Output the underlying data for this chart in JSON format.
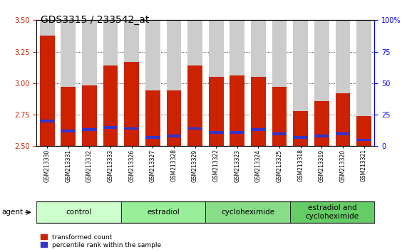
{
  "title": "GDS3315 / 233542_at",
  "samples": [
    "GSM213330",
    "GSM213331",
    "GSM213332",
    "GSM213333",
    "GSM213326",
    "GSM213327",
    "GSM213328",
    "GSM213329",
    "GSM213322",
    "GSM213323",
    "GSM213324",
    "GSM213325",
    "GSM213318",
    "GSM213319",
    "GSM213320",
    "GSM213321"
  ],
  "red_values": [
    3.38,
    2.97,
    2.98,
    3.14,
    3.17,
    2.94,
    2.94,
    3.14,
    3.05,
    3.06,
    3.05,
    2.97,
    2.78,
    2.86,
    2.92,
    2.74
  ],
  "blue_values": [
    2.7,
    2.62,
    2.63,
    2.65,
    2.64,
    2.57,
    2.58,
    2.64,
    2.61,
    2.61,
    2.63,
    2.6,
    2.57,
    2.58,
    2.6,
    2.55
  ],
  "ymin": 2.5,
  "ymax": 3.5,
  "yticks": [
    2.5,
    2.75,
    3.0,
    3.25,
    3.5
  ],
  "y_right_ticks": [
    0,
    25,
    50,
    75,
    100
  ],
  "y_right_labels": [
    "0",
    "25",
    "50",
    "75",
    "100%"
  ],
  "groups": [
    {
      "label": "control",
      "start": 0,
      "end": 4,
      "color": "#ccffcc"
    },
    {
      "label": "estradiol",
      "start": 4,
      "end": 8,
      "color": "#99ee99"
    },
    {
      "label": "cycloheximide",
      "start": 8,
      "end": 12,
      "color": "#88dd88"
    },
    {
      "label": "estradiol and\ncycloheximide",
      "start": 12,
      "end": 16,
      "color": "#66cc66"
    }
  ],
  "bar_width": 0.7,
  "red_color": "#cc2200",
  "blue_color": "#3333cc",
  "bar_bg_color": "#cccccc",
  "agent_label": "agent",
  "legend_red": "transformed count",
  "legend_blue": "percentile rank within the sample",
  "title_fontsize": 10,
  "tick_fontsize": 7,
  "group_label_fontsize": 7.5
}
